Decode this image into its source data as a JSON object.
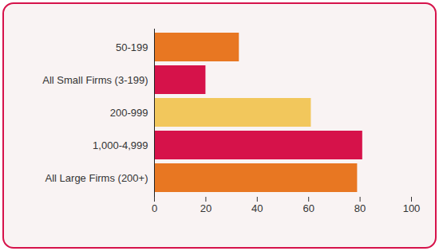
{
  "chart_data": {
    "type": "bar",
    "orientation": "horizontal",
    "categories": [
      "50-199",
      "All Small Firms (3-199)",
      "200-999",
      "1,000-4,999",
      "All Large Firms (200+)"
    ],
    "values": [
      33,
      20,
      61,
      81,
      79
    ],
    "colors": [
      "#e87722",
      "#d6124a",
      "#f2c75c",
      "#d6124a",
      "#e87722"
    ],
    "xlim": [
      0,
      100
    ],
    "xticks": [
      0,
      20,
      40,
      60,
      80,
      100
    ],
    "grid": false
  }
}
